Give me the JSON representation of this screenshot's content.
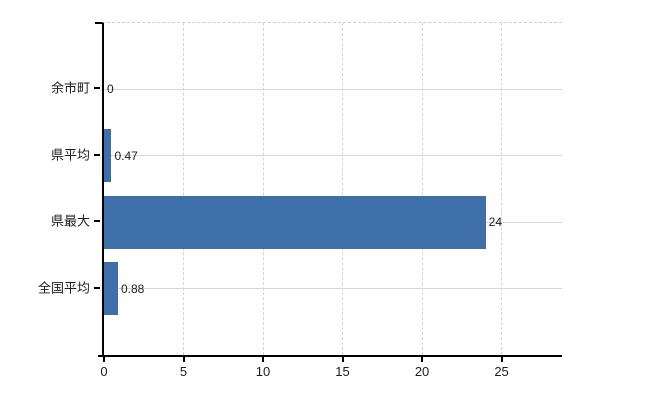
{
  "chart_data": {
    "type": "bar",
    "orientation": "horizontal",
    "categories": [
      "余市町",
      "県平均",
      "県最大",
      "全国平均"
    ],
    "values": [
      0,
      0.47,
      24,
      0.88
    ],
    "value_labels": [
      "0",
      "0.47",
      "24",
      "0.88"
    ],
    "xticks": [
      0,
      5,
      10,
      15,
      20,
      25
    ],
    "xtick_labels": [
      "0",
      "5",
      "10",
      "15",
      "20",
      "25"
    ],
    "xlim": [
      0,
      28.8
    ],
    "grid": true,
    "legend": false,
    "bar_color": "#3e6fa8",
    "h_gridline_color": "#d3dad2",
    "v_gridline_color": "#d9d0d6",
    "top_border_color": "#d2cbd2",
    "axis_color": "#000000",
    "text_color": "#1c1c1c",
    "background_color": "#ffffff"
  }
}
